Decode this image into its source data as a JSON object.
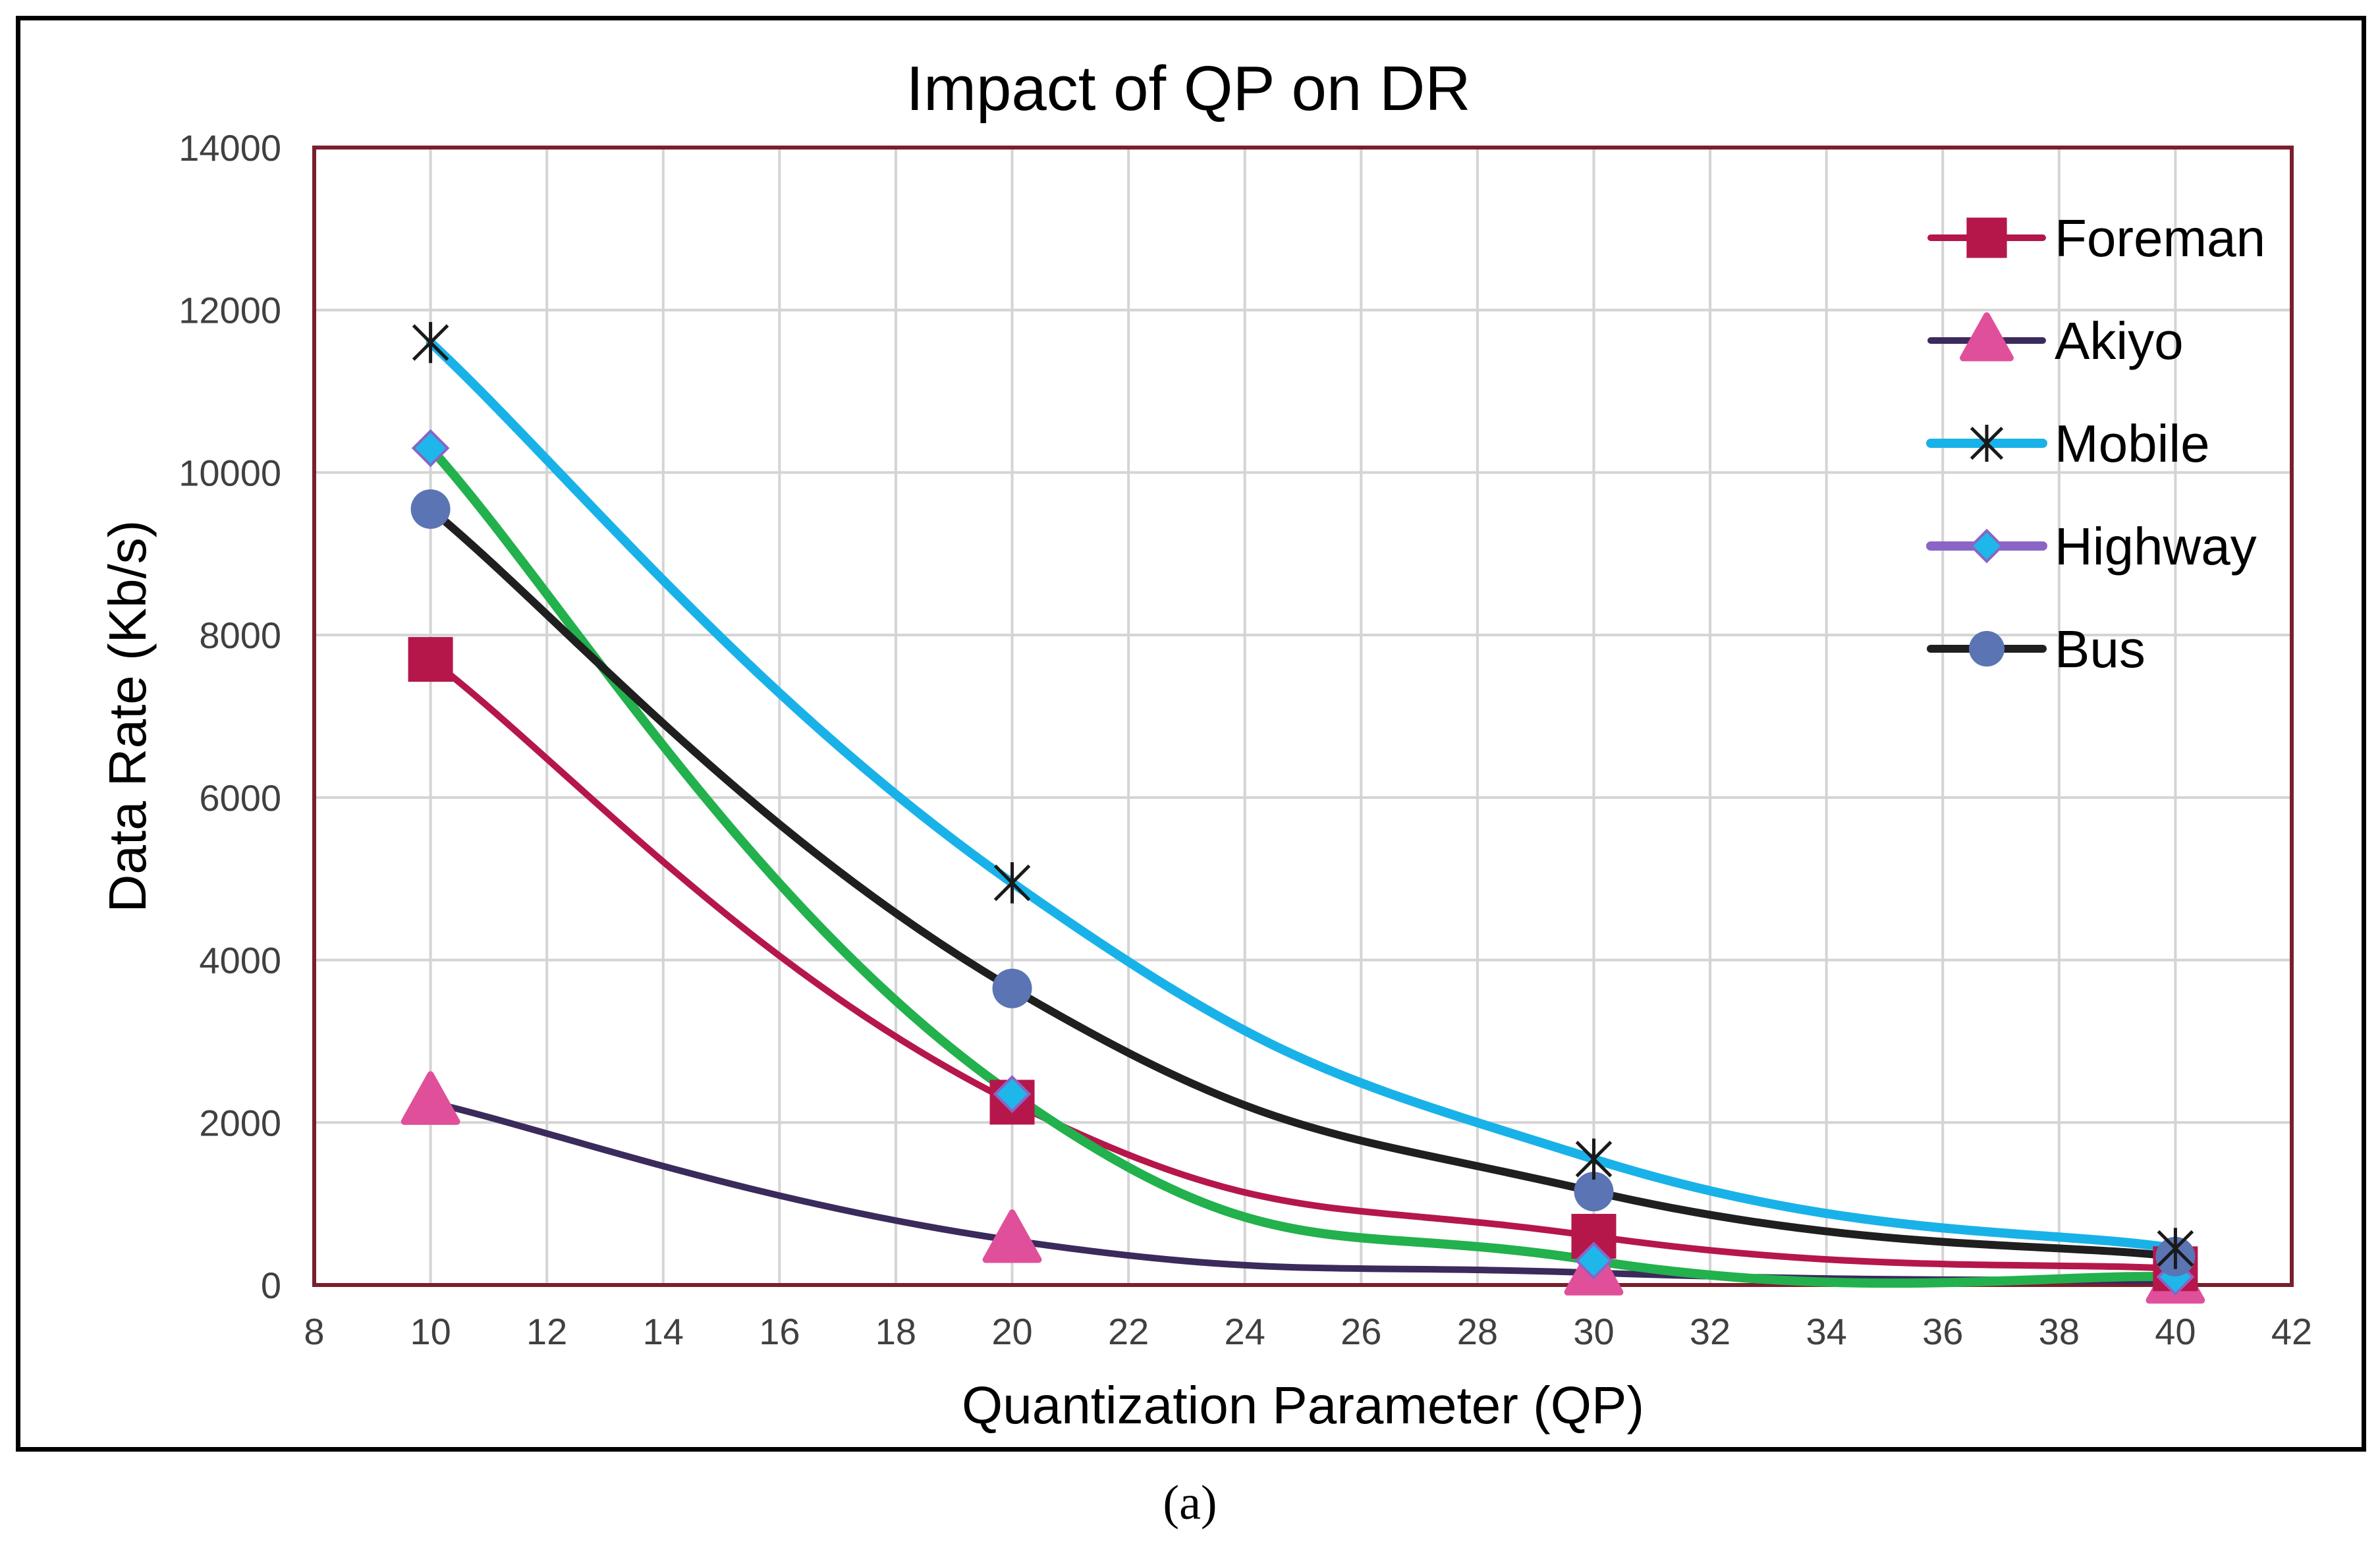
{
  "caption": "(a)",
  "chart_data": {
    "type": "line",
    "title": "Impact of QP on DR",
    "xlabel": "Quantization Parameter (QP)",
    "ylabel": "Data Rate (Kb/s)",
    "xlim": [
      8,
      42
    ],
    "ylim": [
      0,
      14000
    ],
    "xticks": [
      8,
      10,
      12,
      14,
      16,
      18,
      20,
      22,
      24,
      26,
      28,
      30,
      32,
      34,
      36,
      38,
      40,
      42
    ],
    "yticks": [
      0,
      2000,
      4000,
      6000,
      8000,
      10000,
      12000,
      14000
    ],
    "grid": true,
    "legend_position": "top-right",
    "x": [
      10,
      20,
      30,
      40
    ],
    "series": [
      {
        "name": "Foreman",
        "values": [
          7700,
          2250,
          600,
          200
        ],
        "color": "#b5174b",
        "marker": "square",
        "marker_color": "#b5174b"
      },
      {
        "name": "Akiyo",
        "values": [
          2250,
          550,
          150,
          50
        ],
        "color": "#3b2a5c",
        "marker": "triangle",
        "marker_color": "#e0509a"
      },
      {
        "name": "Mobile",
        "values": [
          11600,
          4950,
          1550,
          450
        ],
        "color": "#19b2e8",
        "marker": "star",
        "marker_color": "#1a1a1a"
      },
      {
        "name": "Highway",
        "values": [
          10300,
          2350,
          300,
          100
        ],
        "color": "#22b14c",
        "legend_color": "#8a64c6",
        "marker": "diamond",
        "marker_color": "#1fb6ea"
      },
      {
        "name": "Bus",
        "values": [
          9550,
          3650,
          1150,
          350
        ],
        "color": "#1f1f1f",
        "marker": "circle",
        "marker_color": "#5b74b3"
      }
    ]
  }
}
